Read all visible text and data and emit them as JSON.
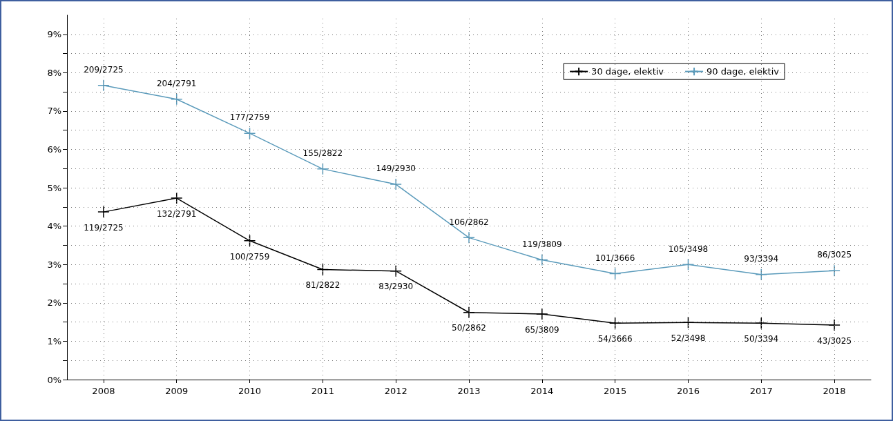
{
  "chart_data": {
    "type": "line",
    "categories": [
      "2008",
      "2009",
      "2010",
      "2011",
      "2012",
      "2013",
      "2014",
      "2015",
      "2016",
      "2017",
      "2018"
    ],
    "series": [
      {
        "name": "30 dage, elektiv",
        "color": "#000000",
        "values": [
          4.37,
          4.73,
          3.62,
          2.87,
          2.83,
          1.75,
          1.71,
          1.47,
          1.49,
          1.47,
          1.42
        ],
        "value_labels": [
          "119/2725",
          "132/2791",
          "100/2759",
          "81/2822",
          "83/2930",
          "50/2862",
          "65/3809",
          "54/3666",
          "52/3498",
          "50/3394",
          "43/3025"
        ]
      },
      {
        "name": "90 dage, elektiv",
        "color": "#5b9bbb",
        "values": [
          7.67,
          7.31,
          6.42,
          5.49,
          5.09,
          3.7,
          3.12,
          2.76,
          3.0,
          2.74,
          2.84
        ],
        "value_labels": [
          "209/2725",
          "204/2791",
          "177/2759",
          "155/2822",
          "149/2930",
          "106/2862",
          "119/3809",
          "101/3666",
          "105/3498",
          "93/3394",
          "86/3025"
        ]
      }
    ],
    "ylim": [
      0,
      9.5
    ],
    "yticks": [
      {
        "value": 0,
        "label": "0%"
      },
      {
        "value": 0.5,
        "label": null
      },
      {
        "value": 1,
        "label": "1%"
      },
      {
        "value": 1.5,
        "label": null
      },
      {
        "value": 2,
        "label": "2%"
      },
      {
        "value": 2.5,
        "label": null
      },
      {
        "value": 3,
        "label": "3%"
      },
      {
        "value": 3.5,
        "label": null
      },
      {
        "value": 4,
        "label": "4%"
      },
      {
        "value": 4.5,
        "label": null
      },
      {
        "value": 5,
        "label": "5%"
      },
      {
        "value": 5.5,
        "label": null
      },
      {
        "value": 6,
        "label": "6%"
      },
      {
        "value": 6.5,
        "label": null
      },
      {
        "value": 7,
        "label": "7%"
      },
      {
        "value": 7.5,
        "label": null
      },
      {
        "value": 8,
        "label": "8%"
      },
      {
        "value": 8.5,
        "label": null
      },
      {
        "value": 9,
        "label": "9%"
      }
    ],
    "grid": true,
    "legend": "top right",
    "marker": "cross",
    "line_style": "solid"
  }
}
